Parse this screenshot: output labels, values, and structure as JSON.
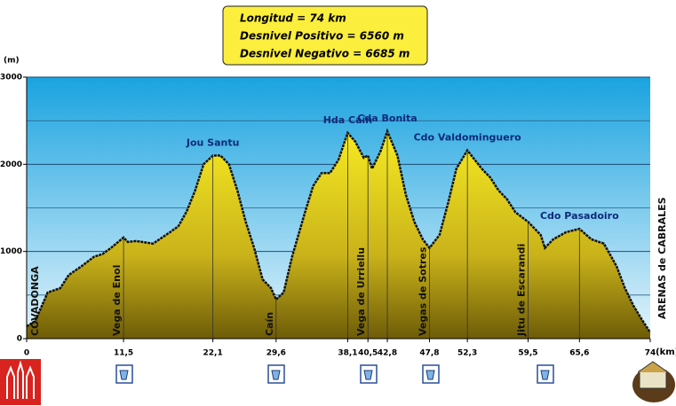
{
  "chart_data": {
    "type": "area",
    "summary": [
      "Longitud = 74 km",
      "Desnivel Positivo = 6560 m",
      "Desnivel Negativo = 6685 m"
    ],
    "y_label": "(m)",
    "x_label": "(km)",
    "start_label": "COVADONGA",
    "end_label": "ARENAS de CABRALES",
    "x": [
      0,
      1,
      2.5,
      4,
      5,
      6.5,
      8,
      9,
      10,
      11.5,
      12,
      13,
      15,
      17,
      18,
      19,
      20,
      21,
      22.1,
      23,
      24,
      25,
      26,
      27,
      28,
      29,
      29.6,
      30.5,
      31.5,
      33,
      34,
      35,
      36,
      37,
      38.1,
      39,
      40,
      40.5,
      41,
      42,
      42.8,
      44,
      45,
      46,
      47,
      47.8,
      49,
      50,
      51,
      52.3,
      54,
      55,
      56,
      57,
      58,
      59.5,
      61,
      61.5,
      62.5,
      64,
      65.6,
      67,
      68.5,
      70,
      71,
      72,
      73,
      74
    ],
    "series": [
      {
        "color": "#f2e21c",
        "values": [
          140,
          200,
          530,
          580,
          730,
          830,
          940,
          970,
          1040,
          1160,
          1110,
          1120,
          1090,
          1220,
          1290,
          1460,
          1700,
          2000,
          2100,
          2100,
          2000,
          1700,
          1340,
          1040,
          680,
          580,
          450,
          530,
          940,
          1440,
          1750,
          1900,
          1900,
          2050,
          2360,
          2260,
          2075,
          2100,
          1950,
          2150,
          2380,
          2100,
          1650,
          1340,
          1140,
          1040,
          1190,
          1550,
          1950,
          2160,
          1950,
          1850,
          1700,
          1600,
          1450,
          1340,
          1190,
          1040,
          1140,
          1220,
          1260,
          1140,
          1090,
          830,
          580,
          380,
          220,
          70
        ]
      }
    ],
    "xlim": [
      0,
      74
    ],
    "ylim": [
      0,
      3000
    ],
    "yticks": [
      0,
      1000,
      2000,
      3000
    ],
    "minor_grid": [
      500,
      1500,
      2500
    ],
    "xticks": [
      0,
      {
        "value": 11.5,
        "label": "11,5"
      },
      {
        "value": 22.1,
        "label": "22,1"
      },
      {
        "value": 29.6,
        "label": "29,6"
      },
      {
        "value": 38.1,
        "label": "38,1"
      },
      {
        "value": 40.5,
        "label": "40,5"
      },
      {
        "value": 42.8,
        "label": "42,8"
      },
      {
        "value": 47.8,
        "label": "47,8"
      },
      {
        "value": 52.3,
        "label": "52,3"
      },
      {
        "value": 59.5,
        "label": "59,5"
      },
      {
        "value": 65.6,
        "label": "65,6"
      },
      74
    ],
    "annotations": [
      {
        "label": "Vega de Enol",
        "x": 11.5,
        "orientation": "vertical"
      },
      {
        "label": "Jou Santu",
        "x": 22.1,
        "orientation": "horizontal"
      },
      {
        "label": "Caín",
        "x": 29.6,
        "orientation": "vertical"
      },
      {
        "label": "Hda Caín",
        "x": 38.1,
        "orientation": "horizontal"
      },
      {
        "label": "Vega de Urriellu",
        "x": 40.5,
        "orientation": "vertical"
      },
      {
        "label": "Cda Bonita",
        "x": 42.8,
        "orientation": "horizontal"
      },
      {
        "label": "Vegas de Sotres",
        "x": 47.8,
        "orientation": "vertical"
      },
      {
        "label": "Cdo Valdominguero",
        "x": 52.3,
        "orientation": "horizontal"
      },
      {
        "label": "Jitu de Escarandi",
        "x": 59.5,
        "orientation": "vertical"
      },
      {
        "label": "Cdo Pasadoiro",
        "x": 65.6,
        "orientation": "horizontal"
      }
    ],
    "grid": true
  }
}
